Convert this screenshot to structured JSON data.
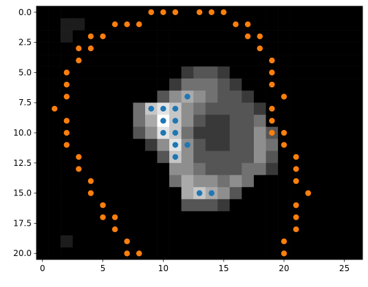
{
  "chart_data": {
    "type": "scatter",
    "image": [
      [
        0.1,
        0.1,
        0.1,
        0.1,
        0.1,
        0.1,
        0.1,
        0.1,
        0.1,
        0.1,
        0.1,
        0.1,
        0.1,
        0.1,
        0.1,
        0.1,
        0.1,
        0.1,
        0.1,
        0.1,
        0.1,
        0.1,
        0.1,
        0.1,
        0.1,
        0.1,
        0.1
      ],
      [
        0.1,
        0.1,
        0.2,
        0.2,
        0.1,
        0.1,
        0.1,
        0.1,
        0.1,
        0.1,
        0.1,
        0.1,
        0.1,
        0.1,
        0.1,
        0.1,
        0.1,
        0.1,
        0.1,
        0.1,
        0.1,
        0.1,
        0.1,
        0.1,
        0.1,
        0.1,
        0.1
      ],
      [
        0.1,
        0.1,
        0.2,
        0.1,
        0.1,
        0.1,
        0.1,
        0.1,
        0.1,
        0.1,
        0.1,
        0.1,
        0.1,
        0.1,
        0.1,
        0.1,
        0.1,
        0.1,
        0.1,
        0.1,
        0.1,
        0.1,
        0.1,
        0.1,
        0.1,
        0.1,
        0.1
      ],
      [
        0.1,
        0.1,
        0.1,
        0.1,
        0.1,
        0.1,
        0.1,
        0.1,
        0.1,
        0.1,
        0.1,
        0.1,
        0.1,
        0.1,
        0.1,
        0.1,
        0.1,
        0.1,
        0.1,
        0.1,
        0.1,
        0.1,
        0.1,
        0.1,
        0.1,
        0.1,
        0.1
      ],
      [
        0.1,
        0.1,
        0.1,
        0.1,
        0.1,
        0.1,
        0.1,
        0.1,
        0.1,
        0.1,
        0.1,
        0.1,
        0.1,
        0.1,
        0.1,
        0.1,
        0.1,
        0.1,
        0.1,
        0.1,
        0.1,
        0.1,
        0.1,
        0.1,
        0.1,
        0.1,
        0.1
      ],
      [
        0.1,
        0.1,
        0.1,
        0.1,
        0.1,
        0.1,
        0.1,
        0.1,
        0.1,
        0.1,
        0.1,
        0.1,
        0.3,
        0.4,
        0.4,
        0.3,
        0.1,
        0.1,
        0.1,
        0.1,
        0.1,
        0.1,
        0.1,
        0.1,
        0.1,
        0.1,
        0.1
      ],
      [
        0.1,
        0.1,
        0.1,
        0.1,
        0.1,
        0.1,
        0.1,
        0.1,
        0.1,
        0.1,
        0.1,
        0.3,
        0.5,
        0.5,
        0.5,
        0.4,
        0.3,
        0.1,
        0.1,
        0.1,
        0.1,
        0.1,
        0.1,
        0.1,
        0.1,
        0.1,
        0.1
      ],
      [
        0.1,
        0.1,
        0.1,
        0.1,
        0.1,
        0.1,
        0.1,
        0.1,
        0.1,
        0.1,
        0.4,
        0.6,
        0.7,
        0.6,
        0.5,
        0.4,
        0.4,
        0.3,
        0.1,
        0.1,
        0.1,
        0.1,
        0.1,
        0.1,
        0.1,
        0.1,
        0.1
      ],
      [
        0.1,
        0.1,
        0.1,
        0.1,
        0.1,
        0.1,
        0.1,
        0.1,
        0.5,
        0.8,
        0.9,
        0.8,
        0.6,
        0.5,
        0.4,
        0.4,
        0.4,
        0.4,
        0.3,
        0.1,
        0.1,
        0.1,
        0.1,
        0.1,
        0.1,
        0.1,
        0.1
      ],
      [
        0.1,
        0.1,
        0.1,
        0.1,
        0.1,
        0.1,
        0.1,
        0.1,
        0.5,
        0.7,
        1.0,
        0.8,
        0.6,
        0.4,
        0.3,
        0.3,
        0.4,
        0.4,
        0.5,
        0.1,
        0.1,
        0.1,
        0.1,
        0.1,
        0.1,
        0.1,
        0.1
      ],
      [
        0.1,
        0.1,
        0.1,
        0.1,
        0.1,
        0.1,
        0.1,
        0.1,
        0.4,
        0.6,
        0.9,
        0.8,
        0.5,
        0.3,
        0.3,
        0.3,
        0.4,
        0.4,
        0.6,
        0.4,
        0.1,
        0.1,
        0.1,
        0.1,
        0.1,
        0.1,
        0.1
      ],
      [
        0.1,
        0.1,
        0.1,
        0.1,
        0.1,
        0.1,
        0.1,
        0.1,
        0.1,
        0.3,
        0.6,
        0.9,
        0.6,
        0.4,
        0.3,
        0.3,
        0.4,
        0.4,
        0.6,
        0.5,
        0.1,
        0.1,
        0.1,
        0.1,
        0.1,
        0.1,
        0.1
      ],
      [
        0.1,
        0.1,
        0.1,
        0.1,
        0.1,
        0.1,
        0.1,
        0.1,
        0.1,
        0.1,
        0.4,
        0.8,
        0.6,
        0.4,
        0.4,
        0.4,
        0.4,
        0.4,
        0.6,
        0.4,
        0.1,
        0.1,
        0.1,
        0.1,
        0.1,
        0.1,
        0.1
      ],
      [
        0.1,
        0.1,
        0.1,
        0.1,
        0.1,
        0.1,
        0.1,
        0.1,
        0.1,
        0.1,
        0.1,
        0.6,
        0.6,
        0.5,
        0.4,
        0.4,
        0.4,
        0.5,
        0.5,
        0.3,
        0.1,
        0.1,
        0.1,
        0.1,
        0.1,
        0.1,
        0.1
      ],
      [
        0.1,
        0.1,
        0.1,
        0.1,
        0.1,
        0.1,
        0.1,
        0.1,
        0.1,
        0.1,
        0.1,
        0.5,
        0.7,
        0.6,
        0.6,
        0.5,
        0.6,
        0.5,
        0.1,
        0.1,
        0.1,
        0.1,
        0.1,
        0.1,
        0.1,
        0.1,
        0.1
      ],
      [
        0.1,
        0.1,
        0.1,
        0.1,
        0.1,
        0.1,
        0.1,
        0.1,
        0.1,
        0.1,
        0.1,
        0.1,
        0.7,
        0.8,
        0.7,
        0.6,
        0.4,
        0.1,
        0.1,
        0.1,
        0.1,
        0.1,
        0.1,
        0.1,
        0.1,
        0.1,
        0.1
      ],
      [
        0.1,
        0.1,
        0.1,
        0.1,
        0.1,
        0.1,
        0.1,
        0.1,
        0.1,
        0.1,
        0.1,
        0.1,
        0.4,
        0.4,
        0.4,
        0.3,
        0.1,
        0.1,
        0.1,
        0.1,
        0.1,
        0.1,
        0.1,
        0.1,
        0.1,
        0.1,
        0.1
      ],
      [
        0.1,
        0.1,
        0.1,
        0.1,
        0.1,
        0.1,
        0.1,
        0.1,
        0.1,
        0.1,
        0.1,
        0.1,
        0.1,
        0.1,
        0.1,
        0.1,
        0.1,
        0.1,
        0.1,
        0.1,
        0.1,
        0.1,
        0.1,
        0.1,
        0.1,
        0.1,
        0.1
      ],
      [
        0.1,
        0.1,
        0.1,
        0.1,
        0.1,
        0.1,
        0.1,
        0.1,
        0.1,
        0.1,
        0.1,
        0.1,
        0.1,
        0.1,
        0.1,
        0.1,
        0.1,
        0.1,
        0.1,
        0.1,
        0.1,
        0.1,
        0.1,
        0.1,
        0.1,
        0.1,
        0.1
      ],
      [
        0.1,
        0.1,
        0.2,
        0.1,
        0.1,
        0.1,
        0.1,
        0.1,
        0.1,
        0.1,
        0.1,
        0.1,
        0.1,
        0.1,
        0.1,
        0.1,
        0.1,
        0.1,
        0.1,
        0.1,
        0.1,
        0.1,
        0.1,
        0.1,
        0.1,
        0.1,
        0.1
      ],
      [
        0.1,
        0.1,
        0.1,
        0.1,
        0.1,
        0.1,
        0.1,
        0.1,
        0.1,
        0.1,
        0.1,
        0.1,
        0.1,
        0.1,
        0.1,
        0.1,
        0.1,
        0.1,
        0.1,
        0.1,
        0.1,
        0.1,
        0.1,
        0.1,
        0.1,
        0.1,
        0.1
      ]
    ],
    "series": [
      {
        "color": "#1f77b4",
        "x": [
          12,
          9,
          10,
          11,
          10,
          11,
          10,
          11,
          11,
          12,
          11,
          13,
          14
        ],
        "y": [
          7,
          8,
          8,
          8,
          9,
          9,
          10,
          10,
          11,
          11,
          12,
          15,
          15
        ]
      },
      {
        "color": "#ff7f0e",
        "x": [
          9,
          10,
          11,
          13,
          14,
          15,
          6,
          7,
          8,
          16,
          17,
          4,
          5,
          17,
          18,
          3,
          4,
          18,
          3,
          19,
          2,
          19,
          2,
          19,
          2,
          20,
          1,
          19,
          2,
          19,
          2,
          19,
          20,
          2,
          20,
          3,
          21,
          3,
          21,
          4,
          21,
          4,
          22,
          5,
          21,
          5,
          6,
          21,
          6,
          21,
          7,
          20,
          7,
          8,
          20
        ],
        "y": [
          0,
          0,
          0,
          0,
          0,
          0,
          1,
          1,
          1,
          1,
          1,
          2,
          2,
          2,
          2,
          3,
          3,
          3,
          4,
          4,
          5,
          5,
          6,
          6,
          7,
          7,
          8,
          8,
          9,
          9,
          10,
          10,
          10,
          11,
          11,
          12,
          12,
          13,
          13,
          14,
          14,
          15,
          15,
          16,
          16,
          17,
          17,
          17,
          18,
          18,
          19,
          19,
          20,
          20,
          20
        ]
      }
    ],
    "xlim": [
      -0.5,
      26.5
    ],
    "ylim": [
      20.5,
      -0.5
    ],
    "xticks": [
      0,
      5,
      10,
      15,
      20,
      25
    ],
    "yticks": [
      {
        "value": 0,
        "label": "0.0"
      },
      {
        "value": 2.5,
        "label": "2.5"
      },
      {
        "value": 5,
        "label": "5.0"
      },
      {
        "value": 7.5,
        "label": "7.5"
      },
      {
        "value": 10,
        "label": "10.0"
      },
      {
        "value": 12.5,
        "label": "12.5"
      },
      {
        "value": 15,
        "label": "15.0"
      },
      {
        "value": 17.5,
        "label": "17.5"
      },
      {
        "value": 20,
        "label": "20.0"
      }
    ]
  }
}
